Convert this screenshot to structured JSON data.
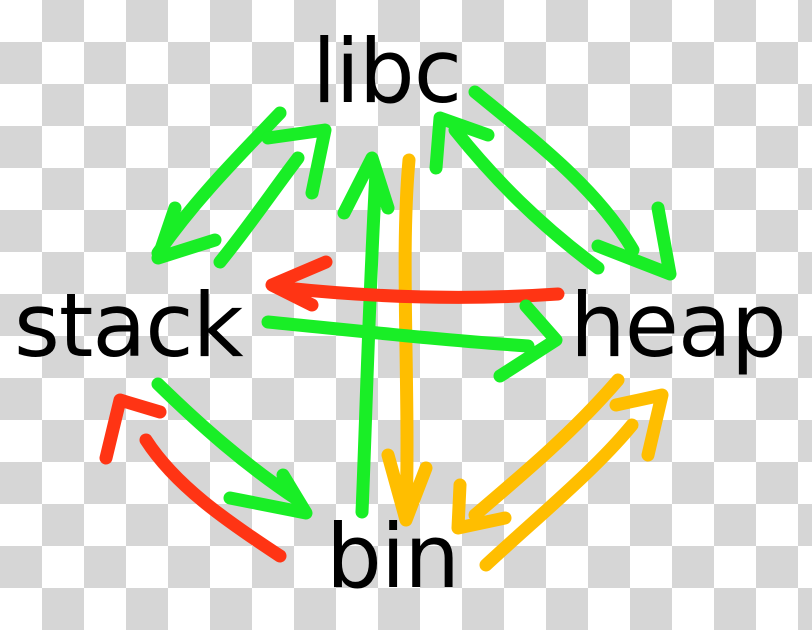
{
  "nodes": {
    "libc": "libc",
    "stack": "stack",
    "heap": "heap",
    "bin": "bin"
  },
  "colors": {
    "green": "#19ee26",
    "red": "#ff3414",
    "orange": "#ffbe00",
    "text": "#000000"
  },
  "arrows": [
    {
      "from": "libc",
      "to": "stack",
      "color": "green"
    },
    {
      "from": "stack",
      "to": "libc",
      "color": "green"
    },
    {
      "from": "libc",
      "to": "heap",
      "color": "green"
    },
    {
      "from": "heap",
      "to": "libc",
      "color": "green"
    },
    {
      "from": "bin",
      "to": "libc",
      "color": "green"
    },
    {
      "from": "libc",
      "to": "bin",
      "color": "orange"
    },
    {
      "from": "heap",
      "to": "stack",
      "color": "red"
    },
    {
      "from": "stack",
      "to": "heap",
      "color": "green"
    },
    {
      "from": "stack",
      "to": "bin",
      "color": "green"
    },
    {
      "from": "bin",
      "to": "stack",
      "color": "red"
    },
    {
      "from": "heap",
      "to": "bin",
      "color": "orange"
    },
    {
      "from": "bin",
      "to": "heap",
      "color": "orange"
    }
  ]
}
